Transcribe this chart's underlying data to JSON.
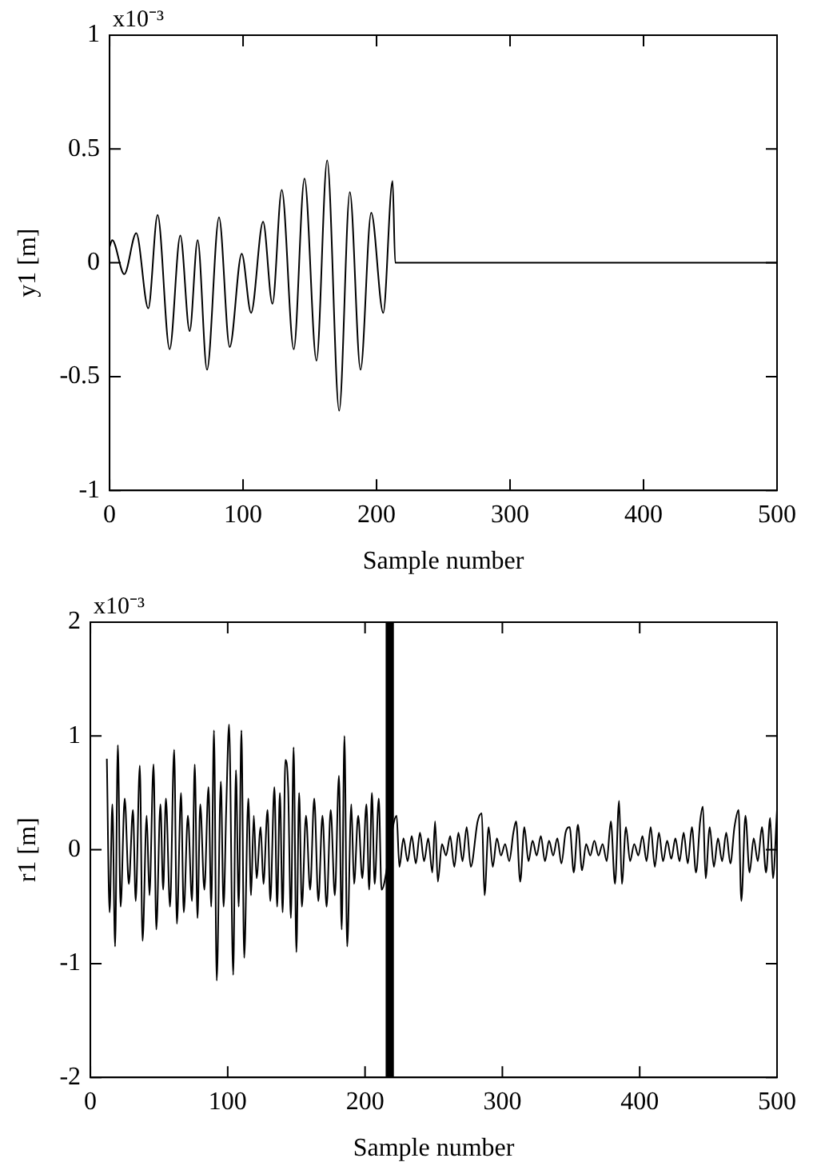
{
  "chart_data": [
    {
      "type": "line",
      "xlabel": "Sample number",
      "ylabel": "y1 [m]",
      "annotations": [
        "x10⁻³"
      ],
      "xlim": [
        0,
        500
      ],
      "xticks": [
        0,
        100,
        200,
        300,
        400,
        500
      ],
      "ylim": [
        -1,
        1
      ],
      "yticks": [
        -1,
        -0.5,
        0,
        0.5,
        1
      ],
      "legend": false,
      "grid": false,
      "x": [
        0,
        2,
        11,
        20,
        29,
        36,
        45,
        53,
        60,
        66,
        73,
        82,
        90,
        99,
        106,
        115,
        122,
        129,
        138,
        146,
        155,
        163,
        172,
        180,
        188,
        196,
        205,
        212,
        214,
        500
      ],
      "series": [
        {
          "color": "#000000",
          "values": [
            0.07,
            0.1,
            -0.05,
            0.13,
            -0.2,
            0.21,
            -0.38,
            0.12,
            -0.3,
            0.1,
            -0.47,
            0.2,
            -0.37,
            0.04,
            -0.22,
            0.18,
            -0.18,
            0.32,
            -0.38,
            0.37,
            -0.43,
            0.45,
            -0.65,
            0.31,
            -0.47,
            0.22,
            -0.22,
            0.36,
            0,
            0
          ]
        }
      ]
    },
    {
      "type": "line",
      "xlabel": "Sample number",
      "ylabel": "r1 [m]",
      "annotations": [
        "x10⁻³"
      ],
      "xlim": [
        0,
        500
      ],
      "xticks": [
        0,
        100,
        200,
        300,
        400,
        500
      ],
      "ylim": [
        -2,
        2
      ],
      "yticks": [
        -2,
        -1,
        0,
        1,
        2
      ],
      "legend": false,
      "grid": false,
      "bands": [
        {
          "axis": "x",
          "from": 215,
          "to": 221,
          "color": "#000000"
        }
      ],
      "x": [
        12,
        14,
        16,
        18,
        20,
        22,
        25,
        28,
        31,
        33,
        36,
        38,
        41,
        43,
        46,
        48,
        51,
        53,
        55,
        58,
        61,
        63,
        66,
        68,
        71,
        74,
        76,
        78,
        80,
        83,
        86,
        88,
        90,
        92,
        95,
        97,
        99,
        101,
        104,
        106,
        108,
        110,
        112,
        115,
        117,
        119,
        121,
        124,
        126,
        129,
        131,
        134,
        136,
        138,
        140,
        142,
        144,
        146,
        148,
        150,
        152,
        154,
        157,
        160,
        163,
        166,
        169,
        172,
        175,
        178,
        181,
        183,
        185,
        187,
        190,
        192,
        195,
        198,
        201,
        203,
        205,
        207,
        210,
        212,
        223,
        225,
        228,
        231,
        234,
        237,
        240,
        243,
        246,
        249,
        251,
        253,
        256,
        259,
        262,
        265,
        268,
        271,
        274,
        277,
        282,
        285,
        287,
        290,
        293,
        296,
        299,
        302,
        305,
        308,
        310,
        313,
        316,
        319,
        322,
        325,
        328,
        331,
        334,
        337,
        340,
        343,
        346,
        349,
        352,
        355,
        358,
        361,
        364,
        367,
        370,
        373,
        376,
        379,
        382,
        385,
        387,
        390,
        393,
        396,
        399,
        402,
        405,
        408,
        411,
        414,
        417,
        420,
        423,
        426,
        429,
        432,
        435,
        438,
        441,
        444,
        446,
        448,
        451,
        454,
        457,
        460,
        463,
        466,
        469,
        472,
        474,
        477,
        480,
        483,
        486,
        489,
        492,
        495,
        497,
        500
      ],
      "series": [
        {
          "color": "#000000",
          "values": [
            0.8,
            -0.55,
            0.4,
            -0.85,
            0.92,
            -0.5,
            0.45,
            -0.3,
            0.35,
            -0.45,
            0.74,
            -0.8,
            0.3,
            -0.4,
            0.75,
            -0.7,
            0.4,
            -0.35,
            0.45,
            -0.5,
            0.88,
            -0.65,
            0.5,
            -0.55,
            0.3,
            -0.45,
            0.75,
            -0.6,
            0.4,
            -0.35,
            0.55,
            -0.5,
            1.05,
            -1.15,
            0.6,
            -0.5,
            0.4,
            1.1,
            -1.1,
            0.7,
            -0.5,
            1.05,
            -0.95,
            0.45,
            -0.4,
            0.3,
            -0.25,
            0.2,
            -0.3,
            0.35,
            -0.45,
            0.55,
            -0.5,
            0.5,
            -0.55,
            0.79,
            0.55,
            -0.6,
            0.9,
            -0.9,
            0.5,
            -0.5,
            0.3,
            -0.35,
            0.45,
            -0.45,
            0.3,
            -0.5,
            0.35,
            -0.4,
            0.65,
            -0.7,
            1.0,
            -0.85,
            0.4,
            -0.3,
            0.3,
            -0.25,
            0.4,
            -0.35,
            0.5,
            -0.3,
            0.45,
            -0.35,
            0.3,
            -0.15,
            0.1,
            -0.1,
            0.12,
            -0.12,
            0.15,
            -0.1,
            0.1,
            -0.2,
            0.25,
            -0.28,
            0.05,
            -0.05,
            0.12,
            -0.15,
            0.15,
            -0.1,
            0.2,
            -0.15,
            0.25,
            0.32,
            -0.4,
            0.2,
            -0.15,
            0.1,
            -0.05,
            0.05,
            -0.1,
            0.15,
            0.25,
            -0.28,
            0.2,
            -0.1,
            0.08,
            -0.05,
            0.12,
            -0.1,
            0.08,
            -0.05,
            0.1,
            -0.12,
            0.15,
            0.2,
            -0.2,
            0.22,
            -0.18,
            0.05,
            -0.05,
            0.08,
            -0.05,
            0.05,
            -0.1,
            0.25,
            -0.3,
            0.43,
            -0.3,
            0.2,
            -0.1,
            0.05,
            -0.05,
            0.12,
            -0.1,
            0.2,
            -0.15,
            0.15,
            -0.1,
            0.08,
            -0.08,
            0.1,
            -0.1,
            0.15,
            -0.12,
            0.2,
            -0.2,
            0.25,
            0.38,
            -0.25,
            0.2,
            -0.15,
            0.1,
            -0.1,
            0.15,
            -0.12,
            0.2,
            0.35,
            -0.45,
            0.3,
            -0.2,
            0.1,
            -0.1,
            0.2,
            -0.2,
            0.28,
            -0.25,
            0.35
          ]
        }
      ]
    }
  ]
}
